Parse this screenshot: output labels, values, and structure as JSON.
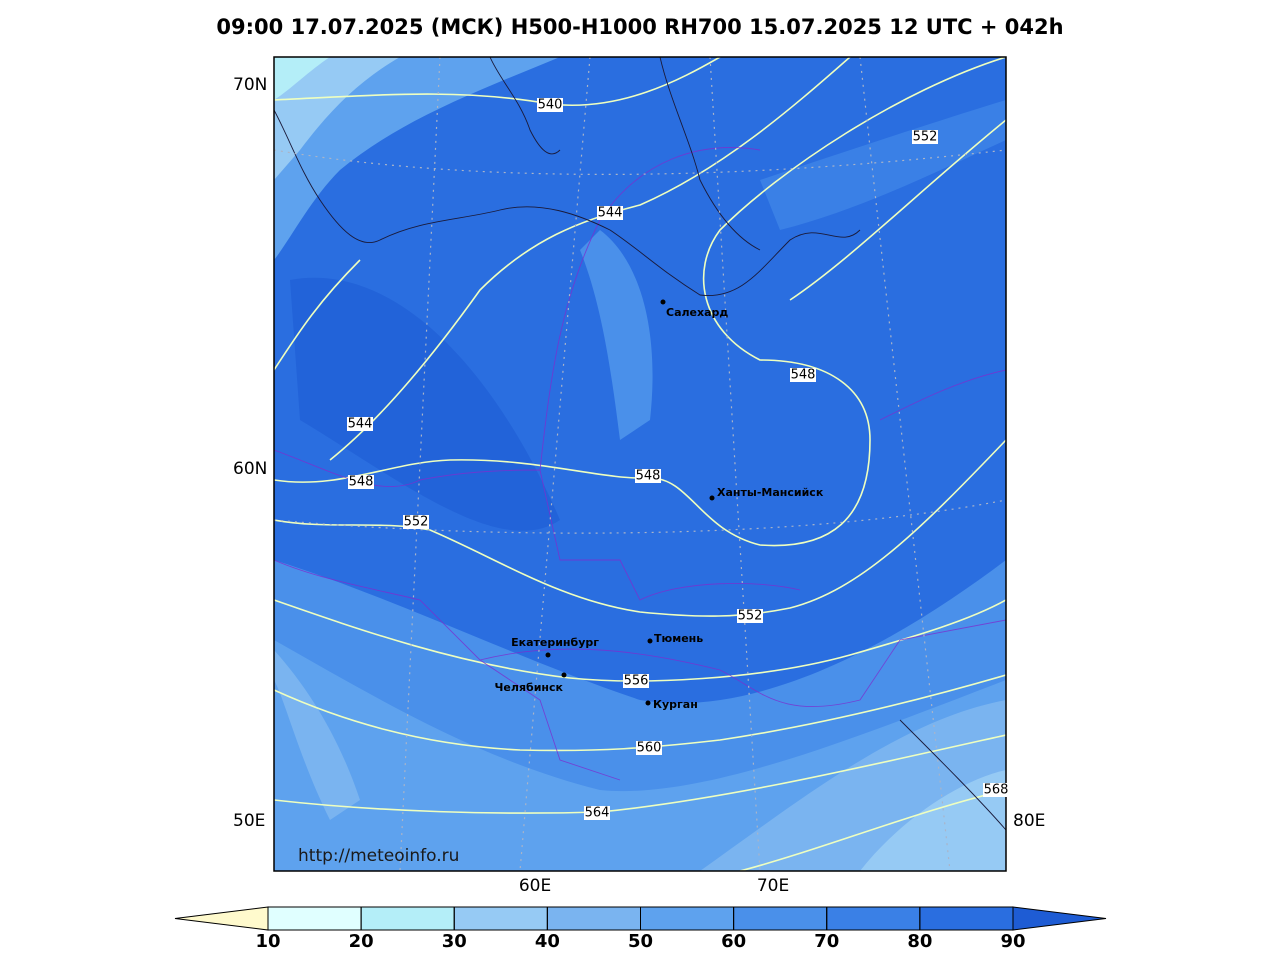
{
  "title": "09:00 17.07.2025 (МСК) H500-H1000 RH700 15.07.2025 12 UTC + 042h",
  "map": {
    "lat_labels": [
      "70N",
      "60N"
    ],
    "lon_labels": [
      "50E",
      "60E",
      "70E",
      "80E"
    ],
    "contour_labels": [
      "540",
      "544",
      "552",
      "548",
      "544",
      "548",
      "548",
      "552",
      "552",
      "556",
      "560",
      "564",
      "568"
    ],
    "cities": [
      "Салехард",
      "Ханты-Мансийск",
      "Екатеринбург",
      "Тюмень",
      "Челябинск",
      "Курган"
    ],
    "watermark": "http://meteoinfo.ru"
  },
  "colorbar": {
    "ticks": [
      10,
      20,
      30,
      40,
      50,
      60,
      70,
      80,
      90
    ],
    "colors": [
      "#fffacd",
      "#e0ffff",
      "#b4eef8",
      "#96caf4",
      "#7ab4f0",
      "#5ea2ee",
      "#4a90ea",
      "#3a80e6",
      "#2a6ee0",
      "#1e5cd4"
    ]
  }
}
